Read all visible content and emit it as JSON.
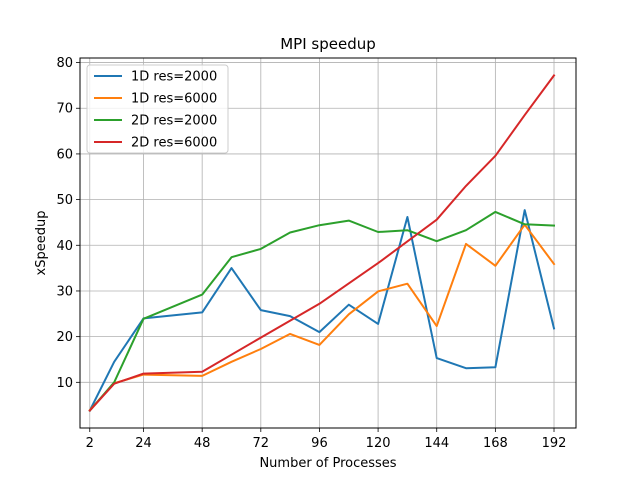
{
  "chart_data": {
    "type": "line",
    "title": "MPI speedup",
    "xlabel": "Number of Processes",
    "ylabel": "xSpeedup",
    "xlim": [
      -2,
      201
    ],
    "ylim": [
      0,
      81
    ],
    "xticks": [
      2,
      24,
      48,
      72,
      96,
      120,
      144,
      168,
      192
    ],
    "yticks": [
      10,
      20,
      30,
      40,
      50,
      60,
      70,
      80
    ],
    "grid": true,
    "legend_position": "top-left",
    "series": [
      {
        "name": "1D res=2000",
        "color": "#1f77b4",
        "x": [
          2,
          12,
          24,
          48,
          60,
          72,
          84,
          96,
          108,
          120,
          132,
          144,
          156,
          168,
          180,
          192
        ],
        "y": [
          3.8,
          14.5,
          24,
          25.3,
          35,
          25.8,
          24.5,
          21,
          27,
          22.8,
          46.2,
          15.3,
          13.1,
          13.3,
          47.7,
          21.8
        ]
      },
      {
        "name": "1D res=6000",
        "color": "#ff7f0e",
        "x": [
          2,
          12,
          24,
          48,
          60,
          72,
          84,
          96,
          108,
          120,
          132,
          144,
          156,
          168,
          180,
          192
        ],
        "y": [
          3.9,
          9.8,
          11.7,
          11.4,
          14.5,
          17.3,
          20.6,
          18.2,
          24.9,
          29.9,
          31.6,
          22.3,
          40.3,
          35.5,
          44.5,
          35.9
        ]
      },
      {
        "name": "2D res=2000",
        "color": "#2ca02c",
        "x": [
          2,
          12,
          24,
          48,
          60,
          72,
          84,
          96,
          108,
          120,
          132,
          144,
          156,
          168,
          180,
          192
        ],
        "y": [
          3.8,
          10,
          23.9,
          29.2,
          37.4,
          39.2,
          42.8,
          44.4,
          45.4,
          42.9,
          43.3,
          40.9,
          43.3,
          47.3,
          44.6,
          44.3
        ]
      },
      {
        "name": "2D res=6000",
        "color": "#d62728",
        "x": [
          2,
          12,
          24,
          48,
          72,
          96,
          120,
          144,
          156,
          168,
          180,
          192
        ],
        "y": [
          3.8,
          9.7,
          11.9,
          12.3,
          19.8,
          27.2,
          36.1,
          45.6,
          53,
          59.6,
          68.5,
          77.2
        ]
      }
    ]
  }
}
